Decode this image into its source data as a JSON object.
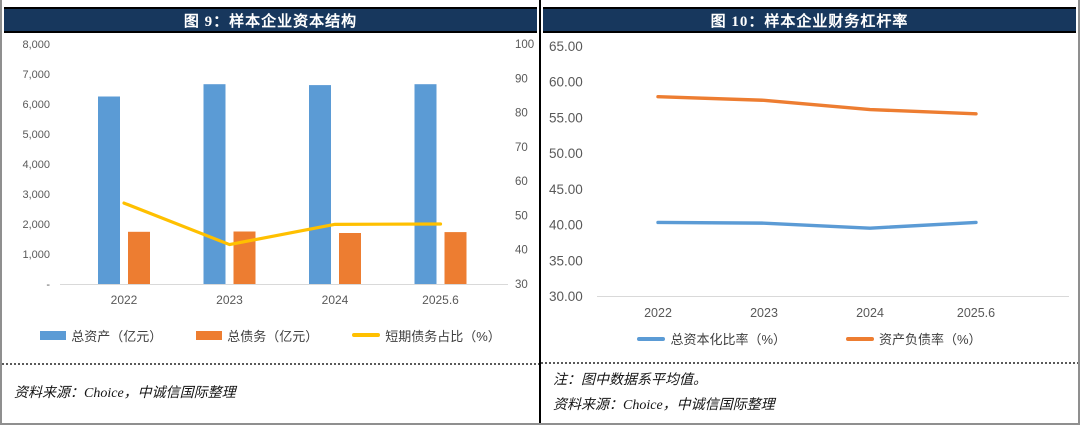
{
  "colors": {
    "header_bg": "#17375D",
    "blue": "#5B9BD5",
    "orange": "#ED7D31",
    "yellow": "#FFC000",
    "axis_text": "#595959",
    "axis_line": "#D9D9D9"
  },
  "footers": {
    "left_source": "资料来源：Choice，中诚信国际整理",
    "right_note": "注：图中数据系平均值。",
    "right_source": "资料来源：Choice，中诚信国际整理"
  },
  "chart_data": [
    {
      "id": "figure9",
      "type": "bar",
      "subtype": "bar-line-combo",
      "title": "图 9：样本企业资本结构",
      "categories": [
        "2022",
        "2023",
        "2024",
        "2025.6"
      ],
      "series": [
        {
          "name": "总资产（亿元）",
          "kind": "bar",
          "axis": "left",
          "color": "#5B9BD5",
          "values": [
            6250,
            6660,
            6630,
            6660
          ]
        },
        {
          "name": "总债务（亿元）",
          "kind": "bar",
          "axis": "left",
          "color": "#ED7D31",
          "values": [
            1740,
            1750,
            1700,
            1730
          ]
        },
        {
          "name": "短期债务占比（%）",
          "kind": "line",
          "axis": "right",
          "color": "#FFC000",
          "values": [
            53.6,
            41.5,
            47.4,
            47.5
          ]
        }
      ],
      "left_axis": {
        "min": 0,
        "max": 8000,
        "step": 1000,
        "tick_labels": [
          "8,000",
          "7,000",
          "6,000",
          "5,000",
          "4,000",
          "3,000",
          "2,000",
          "1,000",
          "-"
        ]
      },
      "right_axis": {
        "min": 30,
        "max": 100,
        "step": 10,
        "tick_labels": [
          "100",
          "90",
          "80",
          "70",
          "60",
          "50",
          "40",
          "30"
        ]
      },
      "grid": false,
      "legend_position": "bottom",
      "xlabel": "",
      "ylabel": ""
    },
    {
      "id": "figure10",
      "type": "line",
      "title": "图 10：样本企业财务杠杆率",
      "categories": [
        "2022",
        "2023",
        "2024",
        "2025.6"
      ],
      "series": [
        {
          "name": "总资本化比率（%）",
          "kind": "line",
          "color": "#5B9BD5",
          "values": [
            40.3,
            40.2,
            39.5,
            40.3
          ]
        },
        {
          "name": "资产负债率（%）",
          "kind": "line",
          "color": "#ED7D31",
          "values": [
            57.9,
            57.4,
            56.1,
            55.5
          ]
        }
      ],
      "y_axis": {
        "min": 30,
        "max": 65,
        "step": 5,
        "tick_labels": [
          "65.00",
          "60.00",
          "55.00",
          "50.00",
          "45.00",
          "40.00",
          "35.00",
          "30.00"
        ]
      },
      "grid": false,
      "legend_position": "bottom",
      "xlabel": "",
      "ylabel": ""
    }
  ]
}
